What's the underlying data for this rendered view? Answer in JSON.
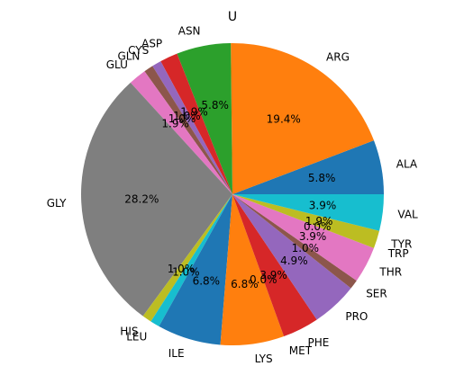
{
  "chart_data": {
    "type": "pie",
    "title": "U",
    "start_angle_deg": 0,
    "direction": "counterclockwise",
    "slices": [
      {
        "label": "ALA",
        "value": 5.8,
        "display": "5.8%",
        "color": "#1f77b4"
      },
      {
        "label": "ARG",
        "value": 19.4,
        "display": "19.4%",
        "color": "#ff7f0e"
      },
      {
        "label": "ASN",
        "value": 5.8,
        "display": "5.8%",
        "color": "#2ca02c"
      },
      {
        "label": "ASP",
        "value": 1.9,
        "display": "1.9%",
        "color": "#d62728"
      },
      {
        "label": "CYS",
        "value": 1.0,
        "display": "1.0%",
        "color": "#9467bd"
      },
      {
        "label": "GLN",
        "value": 1.0,
        "display": "1.0%",
        "color": "#8c564b"
      },
      {
        "label": "GLU",
        "value": 1.9,
        "display": "1.9%",
        "color": "#e377c2"
      },
      {
        "label": "GLY",
        "value": 28.2,
        "display": "28.2%",
        "color": "#7f7f7f"
      },
      {
        "label": "HIS",
        "value": 1.0,
        "display": "1.0%",
        "color": "#bcbd22"
      },
      {
        "label": "LEU",
        "value": 1.0,
        "display": "1.0%",
        "color": "#17becf"
      },
      {
        "label": "ILE",
        "value": 6.8,
        "display": "6.8%",
        "color": "#1f77b4"
      },
      {
        "label": "LYS",
        "value": 6.8,
        "display": "6.8%",
        "color": "#ff7f0e"
      },
      {
        "label": "MET",
        "value": 0.0,
        "display": "0.0%",
        "color": "#2ca02c"
      },
      {
        "label": "PHE",
        "value": 3.9,
        "display": "3.9%",
        "color": "#d62728"
      },
      {
        "label": "PRO",
        "value": 4.9,
        "display": "4.9%",
        "color": "#9467bd"
      },
      {
        "label": "SER",
        "value": 1.0,
        "display": "1.0%",
        "color": "#8c564b"
      },
      {
        "label": "THR",
        "value": 3.9,
        "display": "3.9%",
        "color": "#e377c2"
      },
      {
        "label": "TRP",
        "value": 0.0,
        "display": "0.0%",
        "color": "#7f7f7f"
      },
      {
        "label": "TYR",
        "value": 1.9,
        "display": "1.9%",
        "color": "#bcbd22"
      },
      {
        "label": "VAL",
        "value": 3.9,
        "display": "3.9%",
        "color": "#17becf"
      }
    ]
  }
}
